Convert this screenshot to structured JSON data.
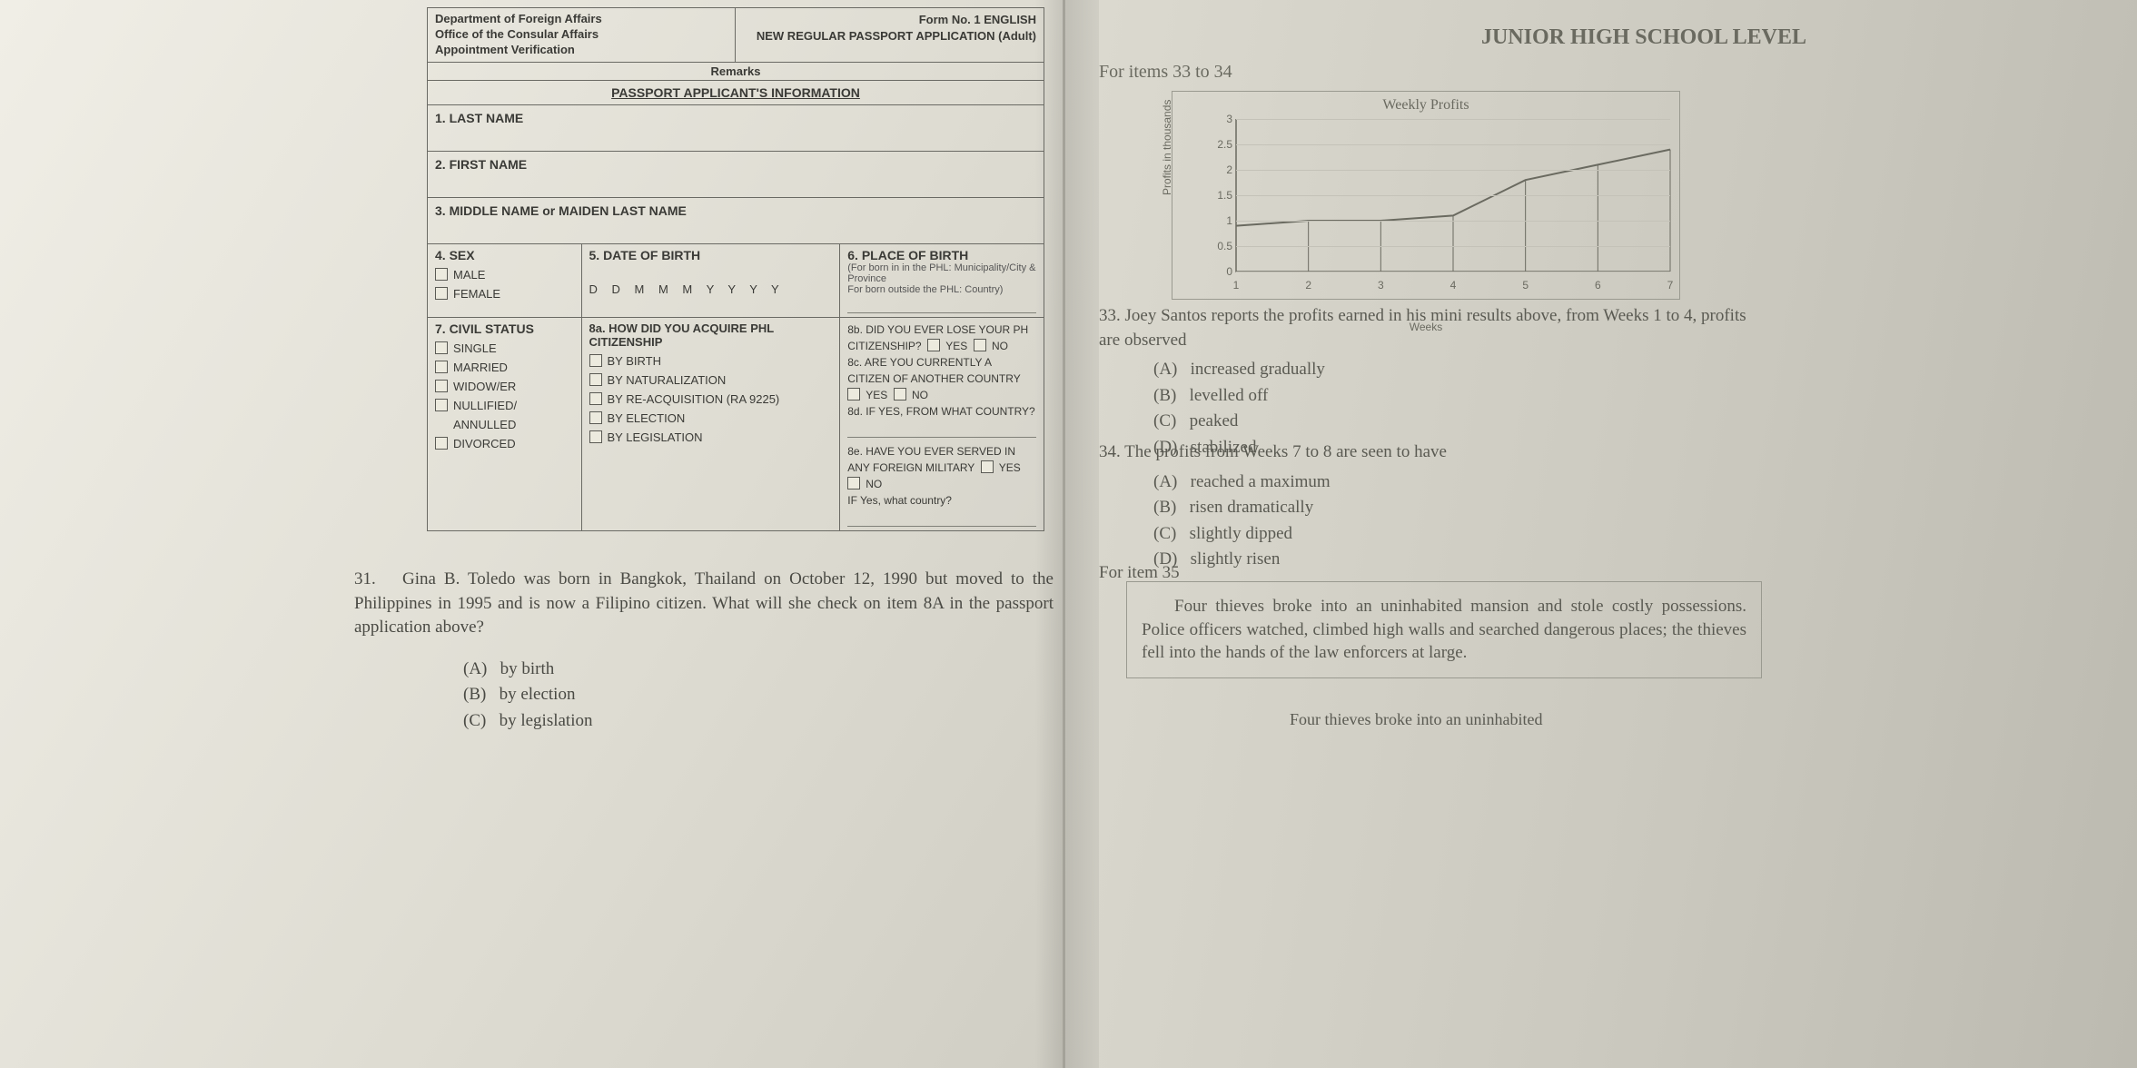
{
  "form": {
    "header": {
      "dept": "Department of Foreign Affairs",
      "office": "Office of the Consular Affairs",
      "appt": "Appointment Verification",
      "form_no": "Form No. 1 ENGLISH",
      "title": "NEW REGULAR PASSPORT APPLICATION (Adult)",
      "remarks": "Remarks"
    },
    "section": "PASSPORT APPLICANT'S INFORMATION",
    "f1": "1. LAST NAME",
    "f2": "2. FIRST NAME",
    "f3": "3. MIDDLE NAME or MAIDEN LAST NAME",
    "sex": {
      "label": "4. SEX",
      "opts": [
        "MALE",
        "FEMALE"
      ]
    },
    "dob": {
      "label": "5. DATE OF BIRTH",
      "fmt": "D D    M M M    Y Y Y Y"
    },
    "pob": {
      "label": "6. PLACE OF BIRTH",
      "sub1": "(For born in in the PHL: Municipality/City & Province",
      "sub2": "For born outside the PHL: Country)"
    },
    "civil": {
      "label": "7. CIVIL STATUS",
      "opts": [
        "SINGLE",
        "MARRIED",
        "WIDOW/ER",
        "NULLIFIED/",
        "ANNULLED",
        "DIVORCED"
      ]
    },
    "q8a": {
      "label": "8a. HOW DID YOU ACQUIRE PHL CITIZENSHIP",
      "opts": [
        "BY BIRTH",
        "BY NATURALIZATION",
        "BY RE-ACQUISITION (RA 9225)",
        "BY ELECTION",
        "BY LEGISLATION"
      ]
    },
    "q8b": {
      "label": "8b. DID YOU EVER LOSE YOUR PH CITIZENSHIP?",
      "yes": "YES",
      "no": "NO"
    },
    "q8c": {
      "label": "8c. ARE YOU CURRENTLY A CITIZEN OF ANOTHER COUNTRY",
      "yes": "YES",
      "no": "NO"
    },
    "q8d": {
      "label": "8d. IF YES, FROM WHAT COUNTRY?"
    },
    "q8e": {
      "label": "8e. HAVE YOU EVER SERVED IN ANY FOREIGN MILITARY",
      "yes": "YES",
      "no": "NO",
      "sub": "IF Yes, what country?"
    }
  },
  "q31": {
    "num": "31.",
    "text": "Gina B. Toledo was born in Bangkok, Thailand on October 12, 1990 but moved to the Philippines in 1995 and is now a Filipino citizen. What will she check on item 8A in the passport application above?",
    "choices": {
      "A": "by birth",
      "B": "by election",
      "C": "by legislation"
    }
  },
  "right": {
    "title": "JUNIOR HIGH SCHOOL LEVEL",
    "forItems": "For items 33 to 34",
    "chart": {
      "type": "line",
      "title": "Weekly Profits",
      "y_label": "Profits in thousands",
      "x_label": "Weeks",
      "y_ticks": [
        0,
        0.5,
        1,
        1.5,
        2,
        2.5,
        3
      ],
      "ylim": [
        0,
        3
      ],
      "x_ticks": [
        1,
        2,
        3,
        4,
        5,
        6,
        7
      ],
      "values": [
        0.9,
        1.0,
        1.0,
        1.1,
        1.8,
        2.1,
        2.4
      ],
      "line_color": "#6a6a60",
      "line_width": 2,
      "grid_color": "#c4c2b8",
      "background_color": "transparent",
      "title_fontsize": 16,
      "label_fontsize": 12
    },
    "q33": {
      "num": "33.",
      "text": "Joey Santos reports the profits earned in his mini results above, from Weeks 1 to 4, profits are observed",
      "choices": {
        "A": "increased gradually",
        "B": "levelled off",
        "C": "peaked",
        "D": "stabilized"
      }
    },
    "q34": {
      "num": "34.",
      "text": "The profits from Weeks 7 to 8 are seen to have",
      "choices": {
        "A": "reached a maximum",
        "B": "risen dramatically",
        "C": "slightly dipped",
        "D": "slightly risen"
      }
    },
    "forItem35": "For item 35",
    "passage": "Four thieves broke into an uninhabited mansion and stole costly possessions. Police officers watched, climbed high walls and searched dangerous places; the thieves fell into the hands of the law enforcers at large.",
    "passage_tail": "Four thieves broke into an uninhabited"
  }
}
